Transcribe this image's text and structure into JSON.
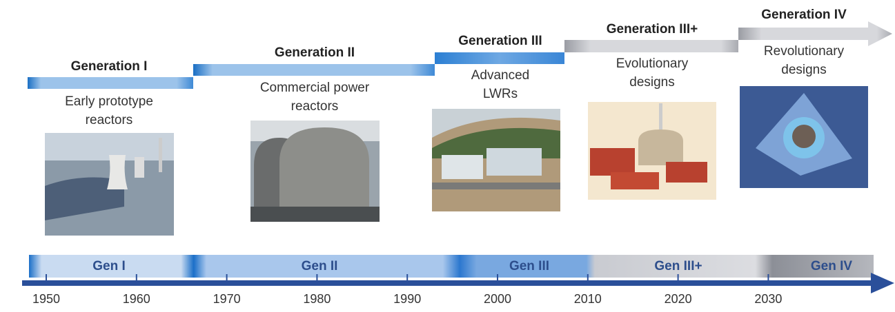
{
  "generations": [
    {
      "title": "Generation I",
      "description": [
        "Early prototype",
        "reactors"
      ]
    },
    {
      "title": "Generation II",
      "description": [
        "Commercial power",
        "reactors"
      ]
    },
    {
      "title": "Generation III",
      "description": [
        "Advanced",
        "LWRs"
      ]
    },
    {
      "title": "Generation III+",
      "description": [
        "Evolutionary",
        "designs"
      ]
    },
    {
      "title": "Generation IV",
      "description": [
        "Revolutionary",
        "designs"
      ]
    }
  ],
  "timeline": {
    "bands": [
      "Gen I",
      "Gen II",
      "Gen III",
      "Gen III+",
      "Gen IV"
    ],
    "years": [
      1950,
      1960,
      1970,
      1980,
      1990,
      2000,
      2010,
      2020,
      2030
    ]
  }
}
